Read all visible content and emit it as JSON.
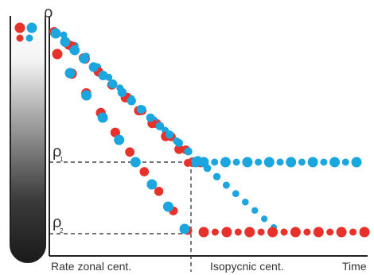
{
  "labels": {
    "rho": "ρ",
    "rho1": "ρ",
    "rho1_sub": "1",
    "rho2": "ρ",
    "rho2_sub": "2",
    "rate_zonal": "Rate zonal cent.",
    "isopycnic": "Isopycnic cent.",
    "time": "Time"
  },
  "colors": {
    "red": "#E8312A",
    "blue": "#1BA6E0",
    "axis": "#222222",
    "text": "#333333"
  },
  "tube": {
    "gradient": "white-to-black",
    "particles": [
      "red",
      "blue",
      "red",
      "blue"
    ]
  },
  "series": [
    {
      "color": "red",
      "trend": "decreasing",
      "plateau": "rho2"
    },
    {
      "color": "blue",
      "trend": "decreasing",
      "plateau": "rho1"
    },
    {
      "color": "red",
      "trend": "decreasing",
      "plateau": "rho2"
    },
    {
      "color": "blue",
      "trend": "decreasing",
      "plateau": "rho1"
    },
    {
      "color": "red",
      "trend": "decreasing",
      "plateau": "rho2"
    },
    {
      "color": "blue",
      "trend": "decreasing",
      "plateau": "rho1"
    }
  ]
}
